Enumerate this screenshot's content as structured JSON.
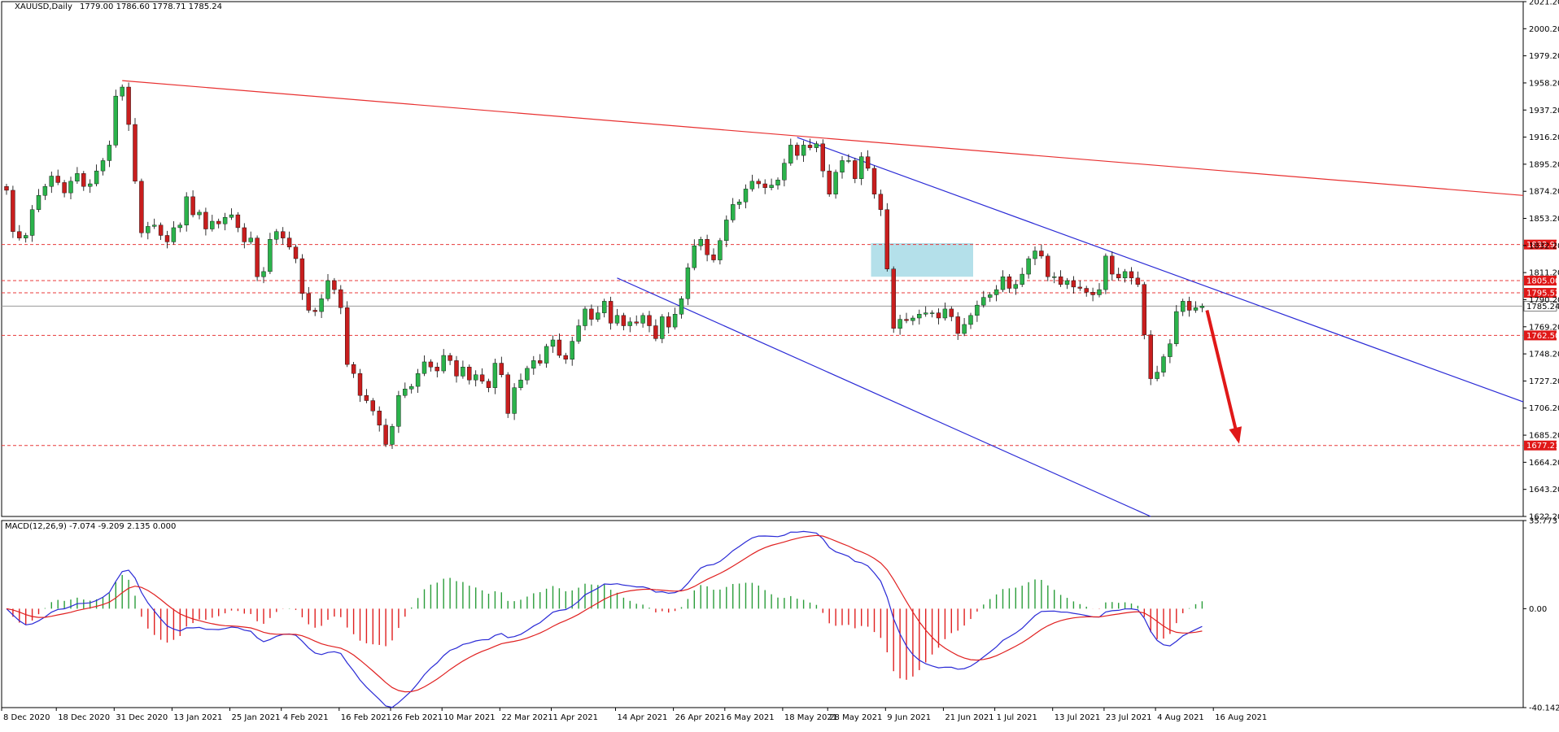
{
  "chart_data": [
    {
      "type": "candlestick",
      "title": "XAUUSD,Daily",
      "ohlc_text": "1779.00 1786.60 1778.71 1785.24",
      "y_ticks": [
        "2021.20",
        "2000.20",
        "1979.20",
        "1958.20",
        "1937.20",
        "1916.20",
        "1895.20",
        "1874.20",
        "1853.20",
        "1832.20",
        "1811.20",
        "1790.20",
        "1769.20",
        "1748.20",
        "1727.20",
        "1706.20",
        "1685.20",
        "1664.20",
        "1643.20",
        "1622.20"
      ],
      "ylim": [
        1622.2,
        2021.2
      ],
      "x_ticks": [
        "8 Dec 2020",
        "18 Dec 2020",
        "31 Dec 2020",
        "13 Jan 2021",
        "25 Jan 2021",
        "4 Feb 2021",
        "16 Feb 2021",
        "26 Feb 2021",
        "10 Mar 2021",
        "22 Mar 2021",
        "1 Apr 2021",
        "14 Apr 2021",
        "26 Apr 2021",
        "6 May 2021",
        "18 May 2021",
        "28 May 2021",
        "9 Jun 2021",
        "21 Jun 2021",
        "1 Jul 2021",
        "13 Jul 2021",
        "23 Jul 2021",
        "4 Aug 2021",
        "16 Aug 2021"
      ],
      "current_price": "1785.24",
      "levels": [
        {
          "value": 1832.93,
          "label": "1832.93"
        },
        {
          "value": 1805.0,
          "label": "1805.00"
        },
        {
          "value": 1795.52,
          "label": "1795.52"
        },
        {
          "value": 1762.5,
          "label": "1762.50"
        },
        {
          "value": 1677.21,
          "label": "1677.21"
        }
      ],
      "closes": [
        1875,
        1843,
        1838,
        1840,
        1860,
        1871,
        1878,
        1886,
        1881,
        1873,
        1882,
        1888,
        1878,
        1880,
        1890,
        1898,
        1910,
        1948,
        1955,
        1926,
        1882,
        1842,
        1847,
        1848,
        1840,
        1835,
        1846,
        1848,
        1870,
        1856,
        1858,
        1845,
        1851,
        1849,
        1854,
        1856,
        1846,
        1835,
        1838,
        1808,
        1812,
        1837,
        1843,
        1838,
        1831,
        1822,
        1795,
        1782,
        1781,
        1791,
        1805,
        1798,
        1784,
        1740,
        1733,
        1716,
        1712,
        1704,
        1693,
        1678,
        1692,
        1716,
        1721,
        1723,
        1733,
        1742,
        1738,
        1735,
        1747,
        1743,
        1731,
        1738,
        1728,
        1732,
        1727,
        1722,
        1741,
        1732,
        1702,
        1722,
        1728,
        1737,
        1743,
        1741,
        1754,
        1759,
        1747,
        1744,
        1758,
        1770,
        1783,
        1775,
        1780,
        1789,
        1772,
        1778,
        1770,
        1773,
        1772,
        1778,
        1770,
        1760,
        1777,
        1769,
        1779,
        1791,
        1815,
        1832,
        1837,
        1825,
        1821,
        1836,
        1852,
        1864,
        1866,
        1876,
        1882,
        1880,
        1877,
        1879,
        1883,
        1896,
        1910,
        1902,
        1910,
        1908,
        1911,
        1890,
        1872,
        1889,
        1898,
        1898,
        1884,
        1901,
        1892,
        1872,
        1860,
        1814,
        1768,
        1775,
        1774,
        1776,
        1779,
        1780,
        1780,
        1776,
        1783,
        1777,
        1764,
        1771,
        1778,
        1786,
        1792,
        1794,
        1798,
        1808,
        1799,
        1802,
        1810,
        1822,
        1828,
        1824,
        1808,
        1808,
        1802,
        1805,
        1800,
        1799,
        1796,
        1794,
        1798,
        1824,
        1810,
        1807,
        1812,
        1807,
        1802,
        1763,
        1729,
        1734,
        1746,
        1756,
        1781,
        1789,
        1782,
        1784,
        1785.24
      ],
      "macd_label": "MACD(12,26,9) -7.074 -9.209 2.135 0.000",
      "macd_y_ticks": [
        "35.773",
        "0.00",
        "-40.142"
      ],
      "macd_ylim": [
        -40.142,
        35.773
      ],
      "arrow": "down",
      "zone": "shaded resistance box"
    }
  ]
}
